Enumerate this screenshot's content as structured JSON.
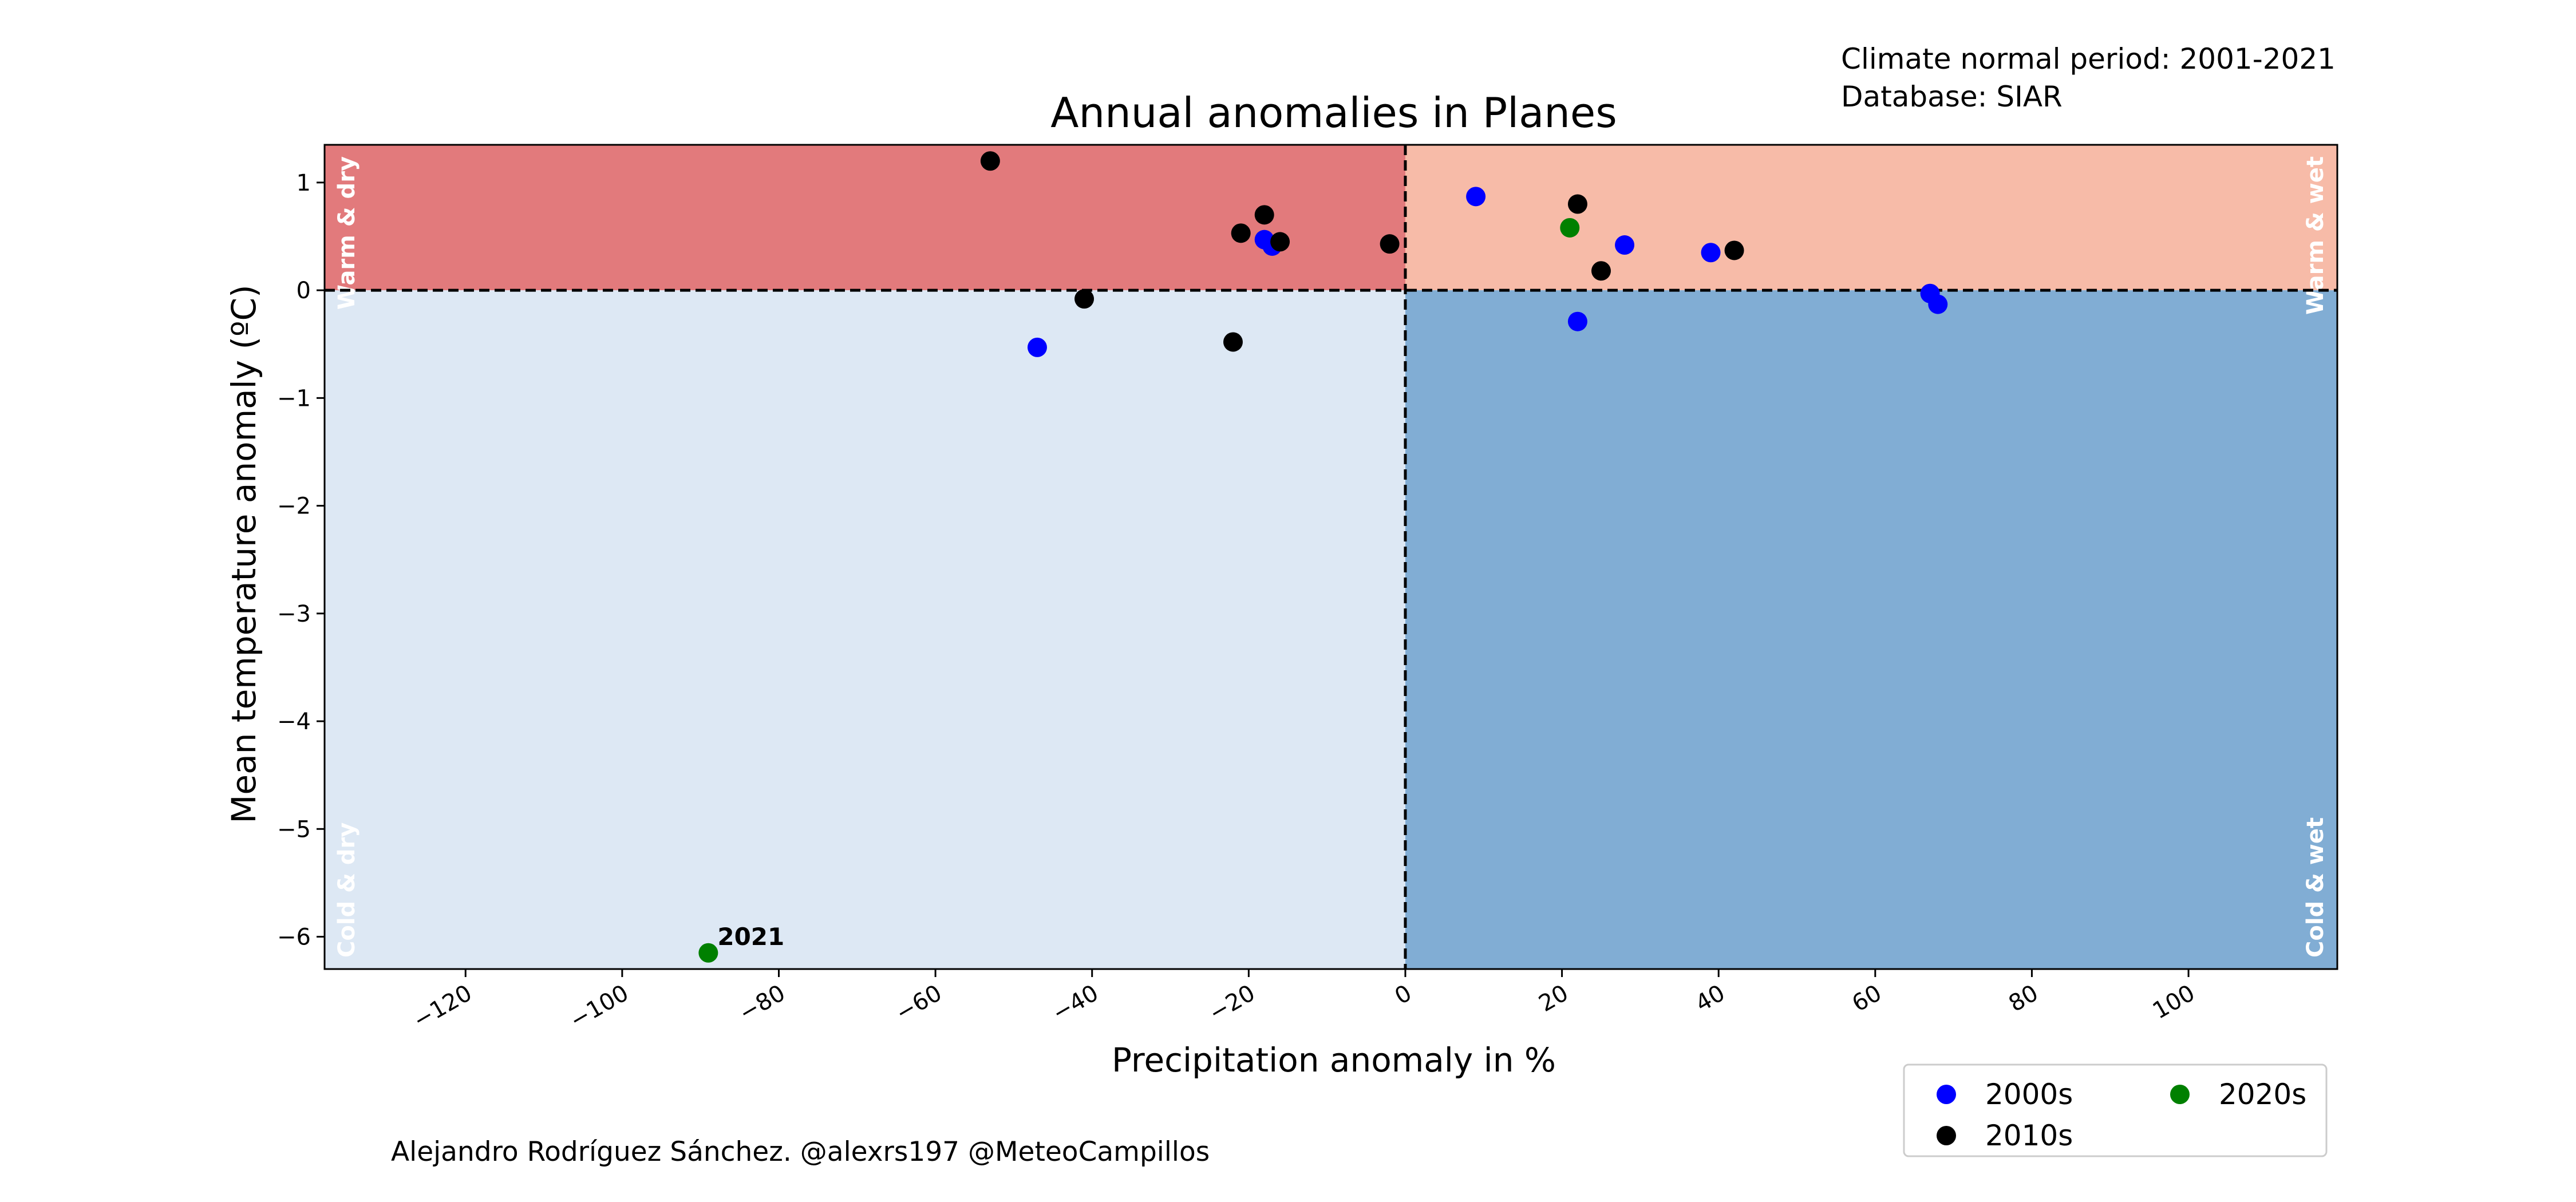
{
  "chart_data": {
    "type": "scatter",
    "title": "Annual anomalies in Planes",
    "xlabel": "Precipitation anomaly in %",
    "ylabel": "Mean temperature anomaly (ºC)",
    "xlim": [
      -138,
      119
    ],
    "ylim": [
      -6.3,
      1.35
    ],
    "x_ticks": [
      -120,
      -100,
      -80,
      -60,
      -40,
      -20,
      0,
      20,
      40,
      60,
      80,
      100
    ],
    "x_tick_labels": [
      "−120",
      "−100",
      "−80",
      "−60",
      "−40",
      "−20",
      "0",
      "20",
      "40",
      "60",
      "80",
      "100"
    ],
    "y_ticks": [
      1,
      0,
      -1,
      -2,
      -3,
      -4,
      -5,
      -6
    ],
    "y_tick_labels": [
      "1",
      "0",
      "−1",
      "−2",
      "−3",
      "−4",
      "−5",
      "−6"
    ],
    "grid": false,
    "legend_position": "below right",
    "reference_lines": {
      "x": 0,
      "y": 0,
      "style": "dashed"
    },
    "quadrants": [
      {
        "label": "Warm & dry",
        "color": "#e27a7c"
      },
      {
        "label": "Warm & wet",
        "color": "#f7bba8"
      },
      {
        "label": "Cold & dry",
        "color": "#dde8f4"
      },
      {
        "label": "Cold & wet",
        "color": "#81add4"
      }
    ],
    "series": [
      {
        "name": "2000s",
        "color": "#0000ff",
        "points": [
          {
            "x": -47,
            "y": -0.53
          },
          {
            "x": -18,
            "y": 0.47
          },
          {
            "x": -17,
            "y": 0.41
          },
          {
            "x": 9,
            "y": 0.87
          },
          {
            "x": 22,
            "y": -0.29
          },
          {
            "x": 28,
            "y": 0.42
          },
          {
            "x": 39,
            "y": 0.35
          },
          {
            "x": 67,
            "y": -0.03
          },
          {
            "x": 68,
            "y": -0.13
          }
        ]
      },
      {
        "name": "2010s",
        "color": "#000000",
        "points": [
          {
            "x": -53,
            "y": 1.2
          },
          {
            "x": -41,
            "y": -0.08
          },
          {
            "x": -22,
            "y": -0.48
          },
          {
            "x": -21,
            "y": 0.53
          },
          {
            "x": -18,
            "y": 0.7
          },
          {
            "x": -16,
            "y": 0.45
          },
          {
            "x": -2,
            "y": 0.43
          },
          {
            "x": 22,
            "y": 0.8
          },
          {
            "x": 25,
            "y": 0.18
          },
          {
            "x": 42,
            "y": 0.37
          }
        ]
      },
      {
        "name": "2020s",
        "color": "#008000",
        "points": [
          {
            "x": 21,
            "y": 0.58
          },
          {
            "x": -89,
            "y": -6.15,
            "label": "2021"
          }
        ]
      }
    ]
  },
  "notes": {
    "climate_period": "Climate normal period: 2001-2021",
    "database": "Database: SIAR"
  },
  "credit": "Alejandro Rodríguez Sánchez. @alexrs197 @MeteoCampillos"
}
